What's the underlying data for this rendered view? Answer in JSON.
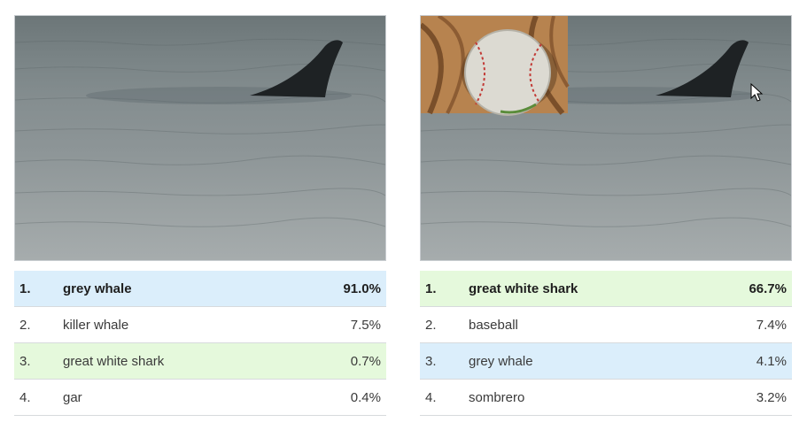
{
  "panels": [
    {
      "image": {
        "subject": "dorsal fin in grey water",
        "patch": null
      },
      "predictions": [
        {
          "rank": "1.",
          "label": "grey whale",
          "score": "91.0%",
          "highlight": "blue"
        },
        {
          "rank": "2.",
          "label": "killer whale",
          "score": "7.5%",
          "highlight": "none"
        },
        {
          "rank": "3.",
          "label": "great white shark",
          "score": "0.7%",
          "highlight": "green"
        },
        {
          "rank": "4.",
          "label": "gar",
          "score": "0.4%",
          "highlight": "none"
        }
      ]
    },
    {
      "image": {
        "subject": "dorsal fin in grey water",
        "patch": "baseball in leather glove"
      },
      "predictions": [
        {
          "rank": "1.",
          "label": "great white shark",
          "score": "66.7%",
          "highlight": "green"
        },
        {
          "rank": "2.",
          "label": "baseball",
          "score": "7.4%",
          "highlight": "none"
        },
        {
          "rank": "3.",
          "label": "grey whale",
          "score": "4.1%",
          "highlight": "blue"
        },
        {
          "rank": "4.",
          "label": "sombrero",
          "score": "3.2%",
          "highlight": "none"
        }
      ]
    }
  ],
  "colors": {
    "highlight_blue": "#dbeefb",
    "highlight_green": "#e5f9dc",
    "divider": "#d7dadd"
  }
}
